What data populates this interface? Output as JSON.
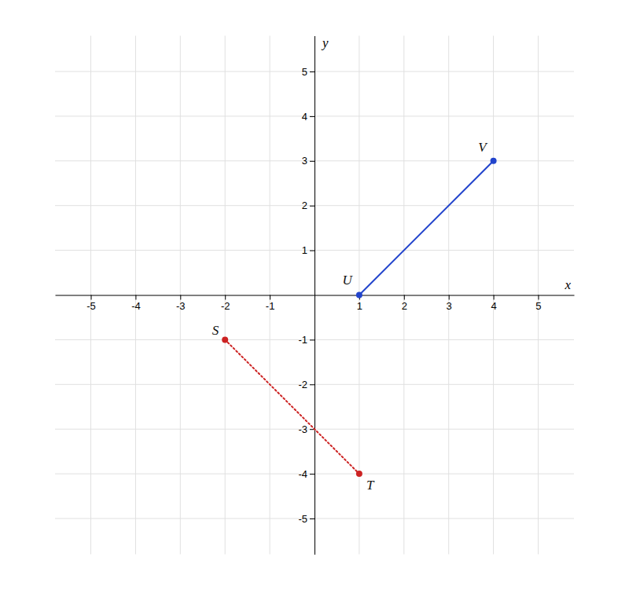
{
  "chart_data": {
    "type": "line",
    "xlabel": "x",
    "ylabel": "y",
    "xlim": [
      -5.8,
      5.8
    ],
    "ylim": [
      -5.8,
      5.8
    ],
    "xticks": [
      -5,
      -4,
      -3,
      -2,
      -1,
      1,
      2,
      3,
      4,
      5
    ],
    "yticks": [
      -5,
      -4,
      -3,
      -2,
      -1,
      1,
      2,
      3,
      4,
      5
    ],
    "grid": true,
    "series": [
      {
        "x": [
          1,
          4
        ],
        "values": [
          0,
          3
        ],
        "color": "#2244cc",
        "line_style": "solid",
        "marker": "circle",
        "point_labels": [
          "U",
          "V"
        ]
      },
      {
        "x": [
          -2,
          1
        ],
        "values": [
          -1,
          -4
        ],
        "color": "#cc2222",
        "line_style": "dotted",
        "marker": "circle",
        "point_labels": [
          "S",
          "T"
        ]
      }
    ]
  }
}
